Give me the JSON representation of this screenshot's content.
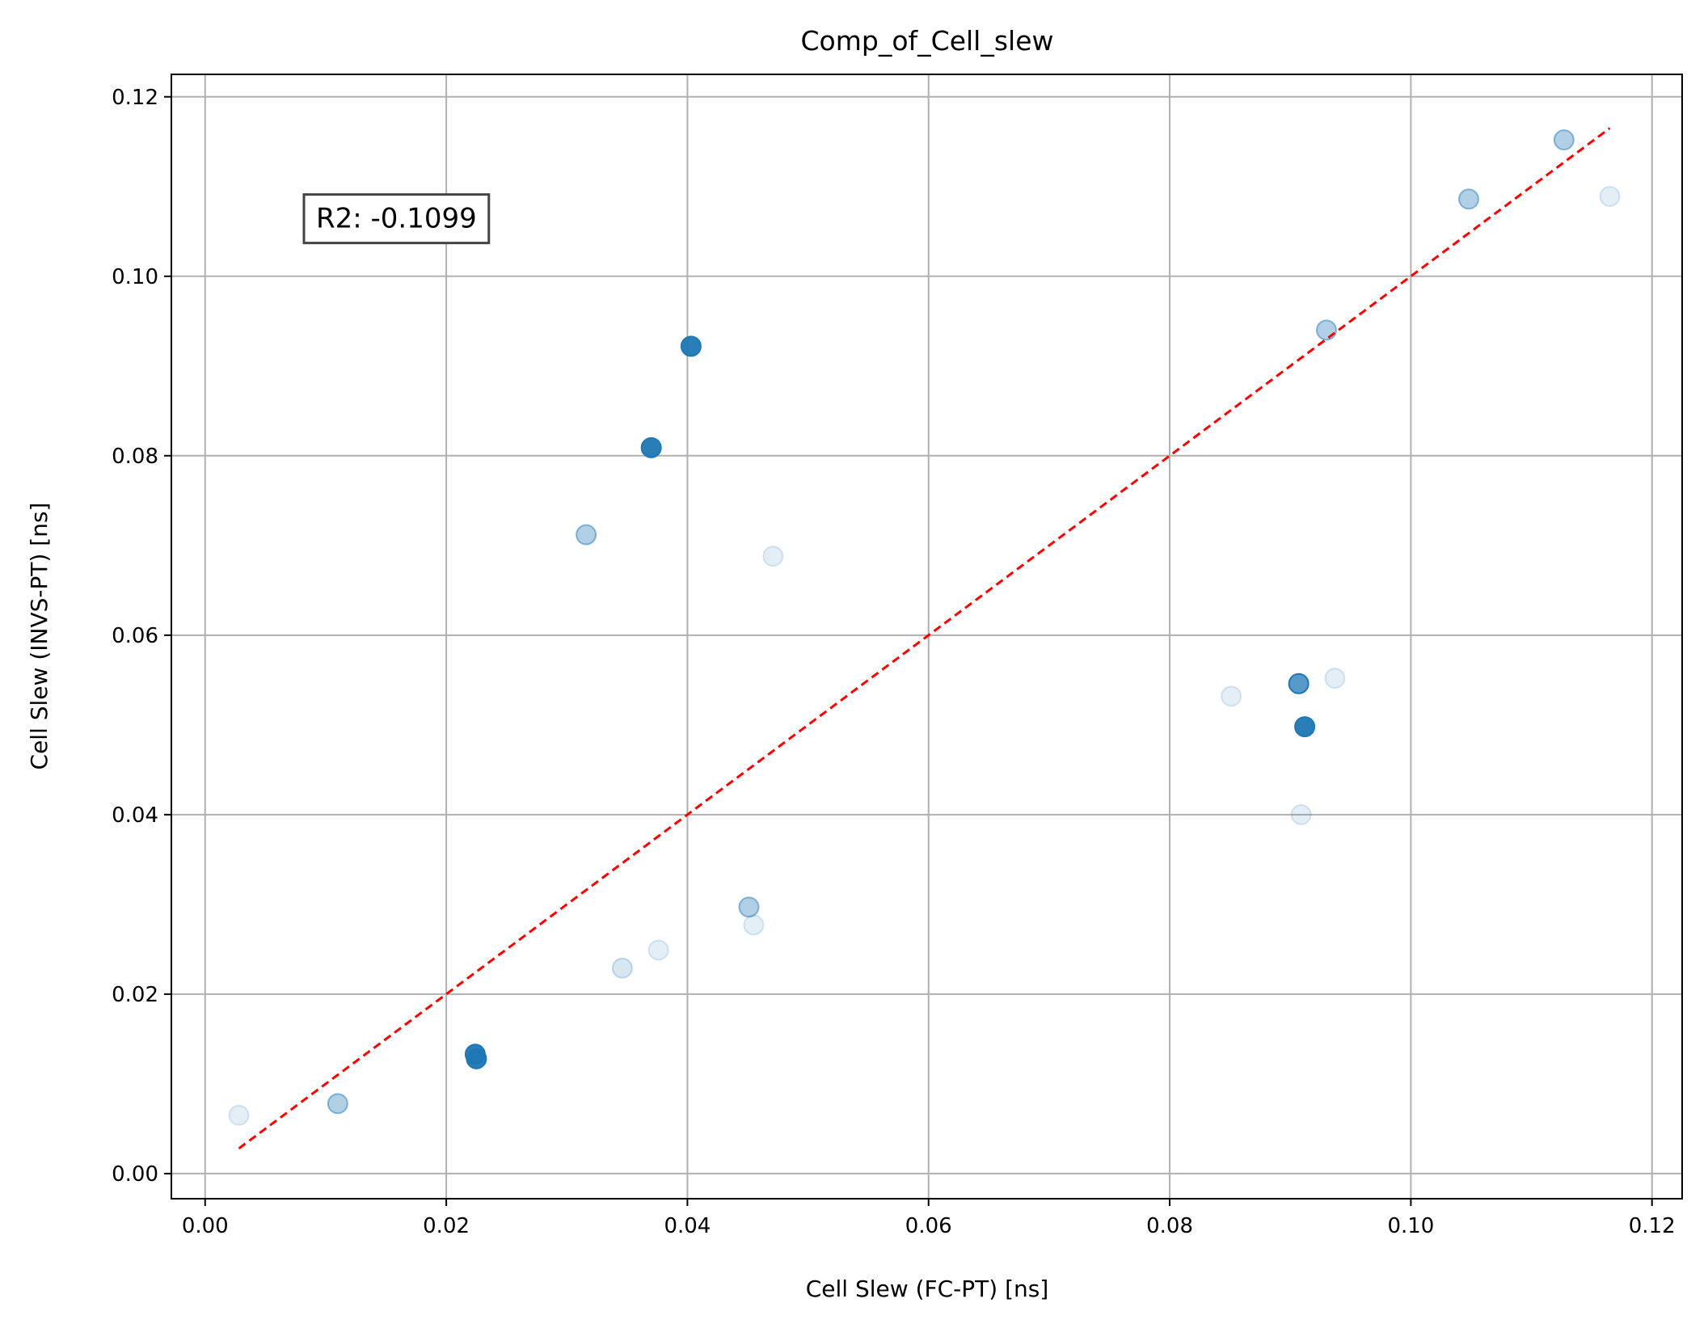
{
  "chart_data": {
    "type": "scatter",
    "title": "Comp_of_Cell_slew",
    "xlabel": "Cell Slew (FC-PT) [ns]",
    "ylabel": "Cell Slew (INVS-PT) [ns]",
    "xlim": [
      -0.0028,
      0.1225
    ],
    "ylim": [
      -0.0028,
      0.1225
    ],
    "xticks": [
      0.0,
      0.02,
      0.04,
      0.06,
      0.08,
      0.1,
      0.12
    ],
    "yticks": [
      0.0,
      0.02,
      0.04,
      0.06,
      0.08,
      0.1,
      0.12
    ],
    "xtick_labels": [
      "0.00",
      "0.02",
      "0.04",
      "0.06",
      "0.08",
      "0.10",
      "0.12"
    ],
    "ytick_labels": [
      "0.00",
      "0.02",
      "0.04",
      "0.06",
      "0.08",
      "0.10",
      "0.12"
    ],
    "grid": true,
    "point_color": "#1f77b4",
    "reference_line": {
      "style": "dashed",
      "color": "#ff0000",
      "x": [
        0.0028,
        0.1165
      ],
      "y": [
        0.0028,
        0.1165
      ]
    },
    "annotation": {
      "text": "R2: -0.1099",
      "x": 0.0092,
      "y": 0.1065
    },
    "points": [
      {
        "x": 0.0028,
        "y": 0.0065,
        "alpha": 0.12
      },
      {
        "x": 0.011,
        "y": 0.0078,
        "alpha": 0.35
      },
      {
        "x": 0.0224,
        "y": 0.0133,
        "alpha": 0.95
      },
      {
        "x": 0.0225,
        "y": 0.0128,
        "alpha": 0.95
      },
      {
        "x": 0.0316,
        "y": 0.0712,
        "alpha": 0.35
      },
      {
        "x": 0.0346,
        "y": 0.0229,
        "alpha": 0.18
      },
      {
        "x": 0.0376,
        "y": 0.0249,
        "alpha": 0.12
      },
      {
        "x": 0.037,
        "y": 0.0809,
        "alpha": 0.95
      },
      {
        "x": 0.0403,
        "y": 0.0922,
        "alpha": 0.95
      },
      {
        "x": 0.0451,
        "y": 0.0297,
        "alpha": 0.35
      },
      {
        "x": 0.0455,
        "y": 0.0277,
        "alpha": 0.12
      },
      {
        "x": 0.0471,
        "y": 0.0688,
        "alpha": 0.12
      },
      {
        "x": 0.0851,
        "y": 0.0532,
        "alpha": 0.12
      },
      {
        "x": 0.0907,
        "y": 0.0546,
        "alpha": 0.75
      },
      {
        "x": 0.0909,
        "y": 0.04,
        "alpha": 0.12
      },
      {
        "x": 0.0912,
        "y": 0.0498,
        "alpha": 0.95
      },
      {
        "x": 0.0937,
        "y": 0.0552,
        "alpha": 0.12
      },
      {
        "x": 0.093,
        "y": 0.094,
        "alpha": 0.35
      },
      {
        "x": 0.1048,
        "y": 0.1086,
        "alpha": 0.35
      },
      {
        "x": 0.1127,
        "y": 0.1152,
        "alpha": 0.35
      },
      {
        "x": 0.1165,
        "y": 0.1089,
        "alpha": 0.12
      }
    ]
  }
}
